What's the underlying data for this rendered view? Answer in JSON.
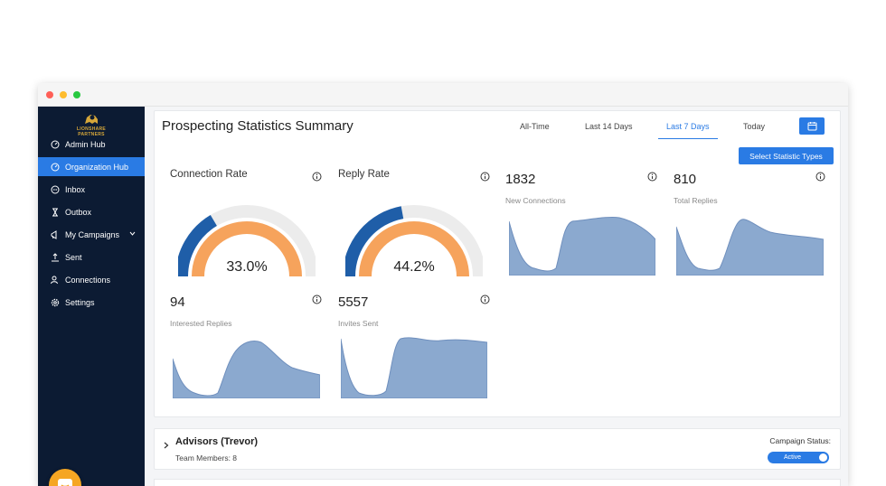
{
  "brand": {
    "name": "LIONSHARE",
    "sub": "PARTNERS",
    "accent": "#2a7be4",
    "sidebar_bg": "#0c1b33"
  },
  "sidebar": {
    "items": [
      {
        "label": "Admin Hub",
        "icon": "gauge-icon"
      },
      {
        "label": "Organization Hub",
        "icon": "gauge-icon",
        "active": true
      },
      {
        "label": "Inbox",
        "icon": "chat-icon"
      },
      {
        "label": "Outbox",
        "icon": "hourglass-icon"
      },
      {
        "label": "My Campaigns",
        "icon": "megaphone-icon"
      },
      {
        "label": "Sent",
        "icon": "upload-icon"
      },
      {
        "label": "Connections",
        "icon": "users-icon"
      },
      {
        "label": "Settings",
        "icon": "gear-icon"
      }
    ]
  },
  "header": {
    "title": "Prospecting Statistics Summary",
    "tabs": [
      "All-Time",
      "Last 14 Days",
      "Last 7 Days",
      "Today"
    ],
    "active_tab": "Last 7 Days",
    "select_button": "Select Statistic Types"
  },
  "stats": {
    "connection_rate": {
      "label": "Connection Rate",
      "value": "33.0%",
      "fraction": 0.33
    },
    "reply_rate": {
      "label": "Reply Rate",
      "value": "44.2%",
      "fraction": 0.442
    },
    "new_connections": {
      "value": "1832",
      "label": "New Connections"
    },
    "total_replies": {
      "value": "810",
      "label": "Total Replies"
    },
    "interested_replies": {
      "value": "94",
      "label": "Interested Replies"
    },
    "invites_sent": {
      "value": "5557",
      "label": "Invites Sent"
    }
  },
  "campaign": {
    "title": "Advisors (Trevor)",
    "members": "Team Members: 8",
    "status_label": "Campaign Status:",
    "status": "Active"
  },
  "colors": {
    "gauge_outer": "#1f5ea8",
    "gauge_inner": "#f6a35c",
    "gauge_track": "#ececec",
    "spark_fill": "#8ba9cf",
    "spark_line": "#6f8fbd"
  }
}
